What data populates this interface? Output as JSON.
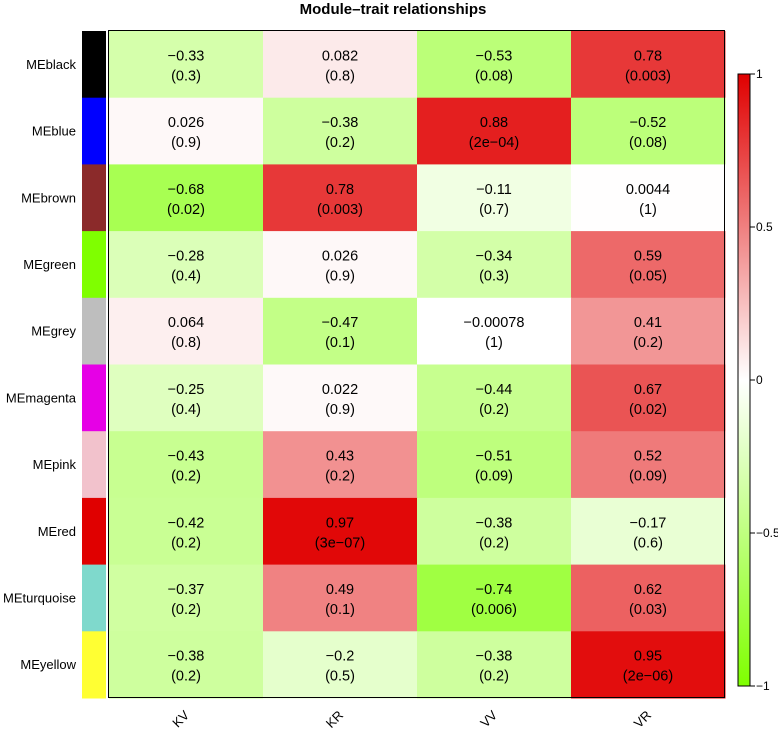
{
  "chart_data": {
    "type": "heatmap",
    "title": "Module–trait relationships",
    "columns": [
      "KV",
      "KR",
      "VV",
      "VR"
    ],
    "rows": [
      {
        "name": "MEblack",
        "color": "#000000",
        "cor": [
          -0.33,
          0.082,
          -0.53,
          0.78
        ],
        "cor_label": [
          "−0.33",
          "0.082",
          "−0.53",
          "0.78"
        ],
        "p_label": [
          "(0.3)",
          "(0.8)",
          "(0.08)",
          "(0.003)"
        ]
      },
      {
        "name": "MEblue",
        "color": "#0000ff",
        "cor": [
          0.026,
          -0.38,
          0.88,
          -0.52
        ],
        "cor_label": [
          "0.026",
          "−0.38",
          "0.88",
          "−0.52"
        ],
        "p_label": [
          "(0.9)",
          "(0.2)",
          "(2e−04)",
          "(0.08)"
        ]
      },
      {
        "name": "MEbrown",
        "color": "#8b2a2a",
        "cor": [
          -0.68,
          0.78,
          -0.11,
          0.0044
        ],
        "cor_label": [
          "−0.68",
          "0.78",
          "−0.11",
          "0.0044"
        ],
        "p_label": [
          "(0.02)",
          "(0.003)",
          "(0.7)",
          "(1)"
        ]
      },
      {
        "name": "MEgreen",
        "color": "#7fff00",
        "cor": [
          -0.28,
          0.026,
          -0.34,
          0.59
        ],
        "cor_label": [
          "−0.28",
          "0.026",
          "−0.34",
          "0.59"
        ],
        "p_label": [
          "(0.4)",
          "(0.9)",
          "(0.3)",
          "(0.05)"
        ]
      },
      {
        "name": "MEgrey",
        "color": "#bebebe",
        "cor": [
          0.064,
          -0.47,
          -0.00078,
          0.41
        ],
        "cor_label": [
          "0.064",
          "−0.47",
          "−0.00078",
          "0.41"
        ],
        "p_label": [
          "(0.8)",
          "(0.1)",
          "(1)",
          "(0.2)"
        ]
      },
      {
        "name": "MEmagenta",
        "color": "#e600e6",
        "cor": [
          -0.25,
          0.022,
          -0.44,
          0.67
        ],
        "cor_label": [
          "−0.25",
          "0.022",
          "−0.44",
          "0.67"
        ],
        "p_label": [
          "(0.4)",
          "(0.9)",
          "(0.2)",
          "(0.02)"
        ]
      },
      {
        "name": "MEpink",
        "color": "#f2c2cc",
        "cor": [
          -0.43,
          0.43,
          -0.51,
          0.52
        ],
        "cor_label": [
          "−0.43",
          "0.43",
          "−0.51",
          "0.52"
        ],
        "p_label": [
          "(0.2)",
          "(0.2)",
          "(0.09)",
          "(0.09)"
        ]
      },
      {
        "name": "MEred",
        "color": "#e00000",
        "cor": [
          -0.42,
          0.97,
          -0.38,
          -0.17
        ],
        "cor_label": [
          "−0.42",
          "0.97",
          "−0.38",
          "−0.17"
        ],
        "p_label": [
          "(0.2)",
          "(3e−07)",
          "(0.2)",
          "(0.6)"
        ]
      },
      {
        "name": "MEturquoise",
        "color": "#7fd9cc",
        "cor": [
          -0.37,
          0.49,
          -0.74,
          0.62
        ],
        "cor_label": [
          "−0.37",
          "0.49",
          "−0.74",
          "0.62"
        ],
        "p_label": [
          "(0.2)",
          "(0.1)",
          "(0.006)",
          "(0.03)"
        ]
      },
      {
        "name": "MEyellow",
        "color": "#ffff33",
        "cor": [
          -0.38,
          -0.2,
          -0.38,
          0.95
        ],
        "cor_label": [
          "−0.38",
          "−0.2",
          "−0.38",
          "0.95"
        ],
        "p_label": [
          "(0.2)",
          "(0.5)",
          "(0.2)",
          "(2e−06)"
        ]
      }
    ],
    "color_scale": {
      "min": -1,
      "max": 1,
      "low_color": "#7fff00",
      "mid_color": "#ffffff",
      "high_color": "#e00000",
      "ticks": [
        1,
        0.5,
        0,
        -0.5,
        -1
      ],
      "tick_labels": [
        "1",
        "0.5",
        "0",
        "−0.5",
        "−1"
      ]
    },
    "legend_placement": "right"
  }
}
